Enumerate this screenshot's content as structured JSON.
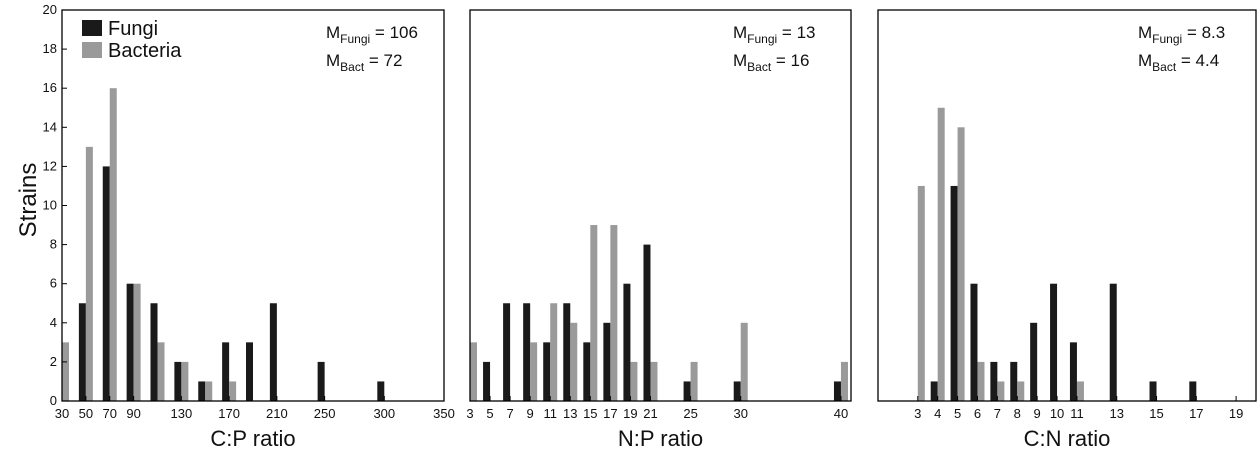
{
  "colors": {
    "fungi": "#1a1a1a",
    "bacteria": "#9a9a9a",
    "frame": "#000000"
  },
  "ylabel": "Strains",
  "chart_data": [
    {
      "type": "bar",
      "xlabel": "C:P ratio",
      "ylabel": "Strains",
      "xlim": [
        30,
        350
      ],
      "ylim": [
        0,
        20
      ],
      "x_ticks": [
        30,
        50,
        70,
        90,
        130,
        170,
        210,
        250,
        300,
        350
      ],
      "y_ticks": [
        0,
        2,
        4,
        6,
        8,
        10,
        12,
        14,
        16,
        18,
        20
      ],
      "legend": {
        "position": "top-left",
        "entries": [
          "Fungi",
          "Bacteria"
        ]
      },
      "series": [
        {
          "name": "Fungi",
          "x": [
            50,
            70,
            90,
            110,
            130,
            150,
            170,
            190,
            210,
            250,
            300
          ],
          "values": [
            5,
            12,
            6,
            5,
            2,
            1,
            3,
            3,
            5,
            2,
            1
          ]
        },
        {
          "name": "Bacteria",
          "x": [
            30,
            50,
            70,
            90,
            110,
            130,
            150,
            170
          ],
          "values": [
            3,
            13,
            16,
            6,
            3,
            2,
            1,
            1
          ]
        }
      ],
      "annotation": [
        {
          "label": "M",
          "sub": "Fungi",
          "value": "= 106"
        },
        {
          "label": "M",
          "sub": "Bact",
          "value": "= 72"
        }
      ]
    },
    {
      "type": "bar",
      "xlabel": "N:P ratio",
      "xlim": [
        3,
        41
      ],
      "ylim": [
        0,
        20
      ],
      "x_ticks": [
        3,
        5,
        7,
        9,
        11,
        13,
        15,
        17,
        19,
        21,
        25,
        30,
        40
      ],
      "series": [
        {
          "name": "Fungi",
          "x": [
            5,
            7,
            9,
            11,
            13,
            15,
            17,
            19,
            21,
            25,
            30,
            40
          ],
          "values": [
            2,
            5,
            5,
            3,
            5,
            3,
            4,
            6,
            8,
            1,
            1,
            1
          ]
        },
        {
          "name": "Bacteria",
          "x": [
            3,
            9,
            11,
            13,
            15,
            17,
            19,
            21,
            25,
            30,
            40
          ],
          "values": [
            3,
            3,
            5,
            4,
            9,
            9,
            2,
            2,
            2,
            4,
            2
          ]
        }
      ],
      "annotation": [
        {
          "label": "M",
          "sub": "Fungi",
          "value": "= 13"
        },
        {
          "label": "M",
          "sub": "Bact",
          "value": "= 16"
        }
      ]
    },
    {
      "type": "bar",
      "xlabel": "C:N ratio",
      "xlim": [
        1,
        20
      ],
      "ylim": [
        0,
        20
      ],
      "x_ticks": [
        3,
        4,
        5,
        6,
        7,
        8,
        9,
        10,
        11,
        13,
        15,
        17,
        19
      ],
      "series": [
        {
          "name": "Fungi",
          "x": [
            4,
            5,
            6,
            7,
            8,
            9,
            10,
            11,
            13,
            15,
            17
          ],
          "values": [
            1,
            11,
            6,
            2,
            2,
            4,
            6,
            3,
            6,
            1,
            1
          ]
        },
        {
          "name": "Bacteria",
          "x": [
            3,
            4,
            5,
            6,
            7,
            8,
            11
          ],
          "values": [
            11,
            15,
            14,
            2,
            1,
            1,
            1
          ]
        }
      ],
      "annotation": [
        {
          "label": "M",
          "sub": "Fungi",
          "value": "= 8.3"
        },
        {
          "label": "M",
          "sub": "Bact",
          "value": "= 4.4"
        }
      ]
    }
  ]
}
